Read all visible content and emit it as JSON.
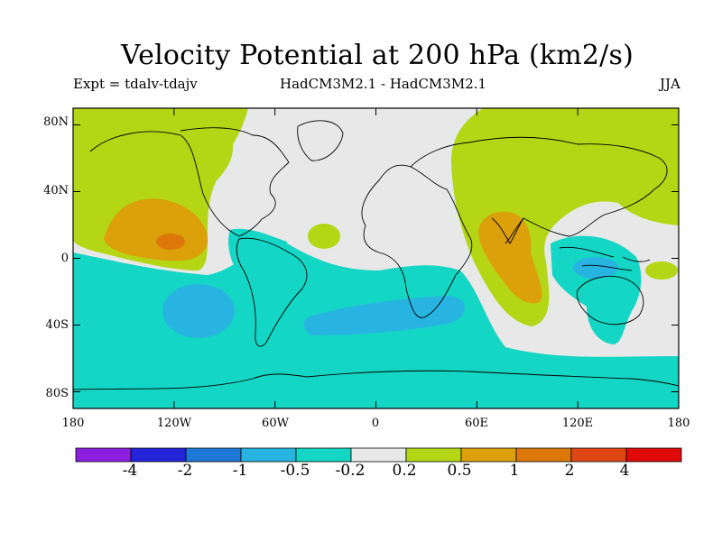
{
  "title": "Velocity Potential at 200 hPa (km2/s)",
  "subtitle_left": "Expt = tdalv-tdajv",
  "subtitle_center": "HadCM3M2.1 - HadCM3M2.1",
  "subtitle_right": "JJA",
  "y_ticks": [
    "80N",
    "40N",
    "0",
    "40S",
    "80S"
  ],
  "x_ticks": [
    "180",
    "120W",
    "60W",
    "0",
    "60E",
    "120E",
    "180"
  ],
  "colorbar": {
    "levels": [
      "-4",
      "-2",
      "-1",
      "-0.5",
      "-0.2",
      "0.2",
      "0.5",
      "1",
      "2",
      "4"
    ],
    "colors": [
      "#8a1fe0",
      "#2424d8",
      "#1e78d6",
      "#28b4e0",
      "#14d6c4",
      "#e8e8e8",
      "#b4d614",
      "#dca00a",
      "#dc780a",
      "#e04614",
      "#e00a0a"
    ]
  },
  "map": {
    "background_color": "#e8e8e8",
    "lat_range": [
      -90,
      90
    ],
    "lon_range": [
      -180,
      180
    ]
  }
}
